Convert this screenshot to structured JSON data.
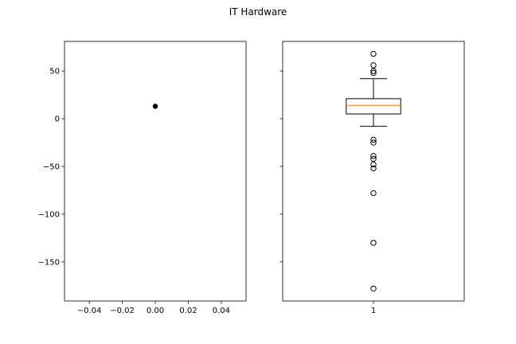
{
  "figure": {
    "title": "IT Hardware"
  },
  "chart_data": [
    {
      "type": "scatter",
      "x": [
        0.0
      ],
      "y": [
        13
      ],
      "xlim": [
        -0.055,
        0.055
      ],
      "ylim": [
        -191,
        81
      ],
      "xticks": [
        -0.04,
        -0.02,
        0.0,
        0.02,
        0.04
      ],
      "xtick_labels": [
        "−0.04",
        "−0.02",
        "0.00",
        "0.02",
        "0.04"
      ],
      "yticks": [
        50,
        0,
        -50,
        -100,
        -150
      ],
      "ytick_labels": [
        "50",
        "0",
        "−50",
        "−100",
        "−150"
      ],
      "marker_color": "#000000"
    },
    {
      "type": "box",
      "categories": [
        "1"
      ],
      "xlim": [
        0.5,
        1.5
      ],
      "ylim": [
        -191,
        81
      ],
      "yticks": [
        50,
        0,
        -50,
        -100,
        -150
      ],
      "box": {
        "position": 1,
        "q1": 5,
        "median": 14,
        "q3": 21,
        "whisker_low": -8,
        "whisker_high": 42,
        "outliers": [
          68,
          56,
          50,
          48,
          -22,
          -25,
          -39,
          -42,
          -48,
          -52,
          -78,
          -130,
          -178
        ]
      },
      "median_color": "#ff7f0e",
      "box_color": "#000000"
    }
  ]
}
